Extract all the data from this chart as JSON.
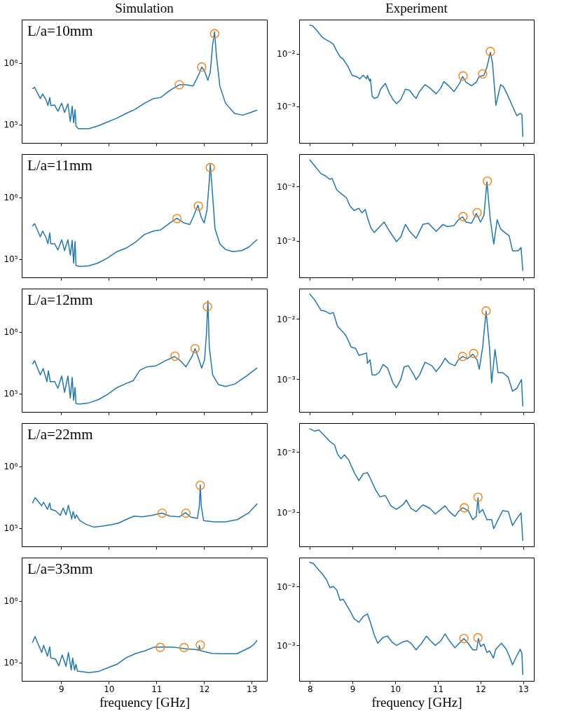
{
  "chart_data": [
    {
      "type": "line",
      "title": "Simulation",
      "annotations": [
        "L/a=10mm"
      ],
      "log": true,
      "xlim": [
        8.17,
        13.32
      ],
      "xticks": [
        9,
        10,
        11,
        12,
        13
      ],
      "ylim": [
        50000,
        5000000
      ],
      "yticks": [
        {
          "value": 100000,
          "label": "10⁵"
        },
        {
          "value": 1000000,
          "label": "10⁶"
        }
      ],
      "tick_labels": "y",
      "series": [
        {
          "color": "#1f77b4",
          "x": [
            8.4,
            8.44,
            8.56,
            8.61,
            8.68,
            8.72,
            8.76,
            8.78,
            8.86,
            8.93,
            9.01,
            9.07,
            9.14,
            9.19,
            9.23,
            9.26,
            9.29,
            9.31,
            9.36,
            9.58,
            9.78,
            9.97,
            10.17,
            10.36,
            10.55,
            10.75,
            10.94,
            11.09,
            11.28,
            11.48,
            11.62,
            11.77,
            11.89,
            11.95,
            12.01,
            12.08,
            12.13,
            12.18,
            12.22,
            12.26,
            12.33,
            12.45,
            12.64,
            12.81,
            12.98,
            13.11
          ],
          "values": [
            380000,
            400000,
            262000,
            311000,
            251000,
            202000,
            273000,
            202000,
            206000,
            163000,
            220000,
            156000,
            215000,
            111000,
            197000,
            106000,
            173000,
            93000,
            85000,
            85000,
            95000,
            109000,
            126000,
            150000,
            175000,
            220000,
            262000,
            273000,
            354000,
            438000,
            438000,
            420000,
            645000,
            850000,
            730000,
            520000,
            700000,
            1970000,
            3160000,
            1280000,
            420000,
            220000,
            150000,
            141000,
            156000,
            170000
          ]
        },
        {
          "type": "scatter",
          "marker": "circle",
          "color": "#ff7f0e",
          "x": [
            11.48,
            11.95,
            12.22
          ],
          "values": [
            438000,
            850000,
            2950000
          ]
        }
      ]
    },
    {
      "type": "line",
      "title": "Experiment",
      "log": true,
      "xlim": [
        7.75,
        13.25
      ],
      "xticks": [
        8,
        9,
        10,
        11,
        12,
        13
      ],
      "ylim": [
        0.0002,
        0.045
      ],
      "yticks": [
        {
          "value": 0.001,
          "label": "10⁻³"
        },
        {
          "value": 0.01,
          "label": "10⁻²"
        }
      ],
      "tick_labels": "y",
      "series": [
        {
          "color": "#1f77b4",
          "x": [
            8.0,
            8.06,
            8.16,
            8.29,
            8.37,
            8.47,
            8.55,
            8.63,
            8.71,
            8.78,
            8.89,
            8.99,
            9.09,
            9.17,
            9.25,
            9.33,
            9.35,
            9.4,
            9.42,
            9.46,
            9.51,
            9.59,
            9.66,
            9.77,
            9.87,
            9.95,
            10.03,
            10.13,
            10.24,
            10.34,
            10.44,
            10.49,
            10.57,
            10.7,
            10.81,
            10.96,
            11.07,
            11.14,
            11.25,
            11.38,
            11.51,
            11.58,
            11.66,
            11.79,
            11.9,
            11.97,
            12.08,
            12.15,
            12.23,
            12.28,
            12.36,
            12.47,
            12.54,
            12.62,
            12.75,
            12.85,
            12.93,
            12.97,
            12.99
          ],
          "values": [
            0.0352,
            0.0345,
            0.0281,
            0.0208,
            0.0188,
            0.017,
            0.0153,
            0.0113,
            0.00877,
            0.00792,
            0.00584,
            0.00389,
            0.0037,
            0.00334,
            0.00389,
            0.00334,
            0.00389,
            0.00302,
            0.00334,
            0.00156,
            0.00141,
            0.00149,
            0.00212,
            0.00273,
            0.00173,
            0.00134,
            0.00112,
            0.00134,
            0.00212,
            0.00201,
            0.00156,
            0.00141,
            0.00191,
            0.00259,
            0.00223,
            0.00173,
            0.00223,
            0.00296,
            0.00247,
            0.00191,
            0.00273,
            0.0037,
            0.00287,
            0.00247,
            0.00287,
            0.0037,
            0.00389,
            0.00555,
            0.0107,
            0.0068,
            0.00104,
            0.00259,
            0.00234,
            0.00173,
            0.001,
            0.00066,
            0.00073,
            0.00069,
            0.000265
          ]
        },
        {
          "type": "scatter",
          "marker": "circle",
          "color": "#ff7f0e",
          "x": [
            11.59,
            12.05,
            12.23
          ],
          "values": [
            0.00378,
            0.00414,
            0.0111
          ]
        }
      ]
    },
    {
      "type": "line",
      "annotations": [
        "L/a=11mm"
      ],
      "log": true,
      "xlim": [
        8.17,
        13.32
      ],
      "xticks": [
        9,
        10,
        11,
        12,
        13
      ],
      "ylim": [
        50000,
        5000000
      ],
      "yticks": [
        {
          "value": 100000,
          "label": "10⁵"
        },
        {
          "value": 1000000,
          "label": "10⁶"
        }
      ],
      "tick_labels": "y",
      "series": [
        {
          "color": "#1f77b4",
          "x": [
            8.4,
            8.44,
            8.56,
            8.61,
            8.68,
            8.72,
            8.76,
            8.78,
            8.86,
            8.93,
            9.01,
            9.07,
            9.14,
            9.19,
            9.23,
            9.26,
            9.29,
            9.31,
            9.39,
            9.58,
            9.78,
            9.97,
            10.17,
            10.36,
            10.55,
            10.75,
            10.94,
            11.09,
            11.28,
            11.43,
            11.58,
            11.7,
            11.79,
            11.87,
            11.94,
            12.0,
            12.06,
            12.11,
            12.13,
            12.17,
            12.23,
            12.33,
            12.45,
            12.6,
            12.79,
            12.94,
            13.11
          ],
          "values": [
            342000,
            372000,
            228000,
            283000,
            222000,
            176000,
            264000,
            176000,
            176000,
            140000,
            204000,
            136000,
            204000,
            115000,
            200000,
            85000,
            192000,
            78000,
            75000,
            77000,
            86000,
            103000,
            131000,
            149000,
            184000,
            249000,
            283000,
            295000,
            382000,
            454000,
            382000,
            360000,
            516000,
            740000,
            473000,
            382000,
            613000,
            1870000,
            3420000,
            1330000,
            308000,
            176000,
            142000,
            131000,
            136000,
            155000,
            204000
          ]
        },
        {
          "type": "scatter",
          "marker": "circle",
          "color": "#ff7f0e",
          "x": [
            11.43,
            11.88,
            12.13
          ],
          "values": [
            450000,
            720000,
            3030000
          ]
        }
      ]
    },
    {
      "type": "line",
      "log": true,
      "xlim": [
        7.75,
        13.25
      ],
      "xticks": [
        8,
        9,
        10,
        11,
        12,
        13
      ],
      "ylim": [
        0.000215,
        0.039
      ],
      "yticks": [
        {
          "value": 0.001,
          "label": "10⁻³"
        },
        {
          "value": 0.01,
          "label": "10⁻²"
        }
      ],
      "tick_labels": "y",
      "series": [
        {
          "color": "#1f77b4",
          "x": [
            8.0,
            8.11,
            8.26,
            8.37,
            8.47,
            8.52,
            8.63,
            8.76,
            8.86,
            8.94,
            9.04,
            9.15,
            9.22,
            9.3,
            9.35,
            9.43,
            9.51,
            9.64,
            9.74,
            9.87,
            10.03,
            10.13,
            10.24,
            10.34,
            10.49,
            10.65,
            10.78,
            10.96,
            11.12,
            11.22,
            11.38,
            11.48,
            11.58,
            11.66,
            11.79,
            11.9,
            12.0,
            12.08,
            12.15,
            12.23,
            12.31,
            12.39,
            12.47,
            12.57,
            12.67,
            12.75,
            12.88,
            12.95,
            12.99
          ],
          "values": [
            0.0305,
            0.024,
            0.0171,
            0.0155,
            0.0134,
            0.0141,
            0.00864,
            0.00711,
            0.00615,
            0.00438,
            0.0036,
            0.00397,
            0.00327,
            0.00378,
            0.00269,
            0.00174,
            0.00143,
            0.00183,
            0.00222,
            0.0015,
            0.00097,
            0.00118,
            0.00201,
            0.0015,
            0.00112,
            0.00201,
            0.00211,
            0.0015,
            0.00201,
            0.00183,
            0.00192,
            0.00244,
            0.00275,
            0.00222,
            0.00211,
            0.00318,
            0.00222,
            0.00297,
            0.0121,
            0.00244,
            0.00088,
            0.00244,
            0.00166,
            0.00143,
            0.00124,
            0.00066,
            0.00066,
            0.00076,
            0.000288
          ]
        },
        {
          "type": "scatter",
          "marker": "circle",
          "color": "#ff7f0e",
          "x": [
            11.59,
            11.92,
            12.16
          ],
          "values": [
            0.0028,
            0.0033,
            0.0125
          ]
        }
      ]
    },
    {
      "type": "line",
      "annotations": [
        "L/a=12mm"
      ],
      "log": true,
      "xlim": [
        8.17,
        13.32
      ],
      "xticks": [
        9,
        10,
        11,
        12,
        13
      ],
      "ylim": [
        50000,
        5000000
      ],
      "yticks": [
        {
          "value": 100000,
          "label": "10⁵"
        },
        {
          "value": 1000000,
          "label": "10⁶"
        }
      ],
      "tick_labels": "y",
      "series": [
        {
          "color": "#1f77b4",
          "x": [
            8.4,
            8.44,
            8.56,
            8.62,
            8.7,
            8.73,
            8.77,
            8.86,
            8.93,
            9.01,
            9.07,
            9.14,
            9.19,
            9.23,
            9.26,
            9.29,
            9.31,
            9.39,
            9.58,
            9.78,
            9.97,
            10.17,
            10.36,
            10.51,
            10.65,
            10.8,
            10.99,
            11.19,
            11.38,
            11.5,
            11.62,
            11.75,
            11.81,
            11.87,
            11.95,
            12.01,
            12.05,
            12.08,
            12.11,
            12.18,
            12.3,
            12.45,
            12.64,
            12.89,
            13.11
          ],
          "values": [
            300000,
            339000,
            199000,
            253000,
            154000,
            232000,
            154000,
            156000,
            121000,
            191000,
            104000,
            191000,
            84000,
            182000,
            77000,
            124000,
            68000,
            67000,
            70000,
            79000,
            96000,
            124000,
            144000,
            160000,
            236000,
            269000,
            280000,
            339000,
            395000,
            339000,
            269000,
            402000,
            530000,
            395000,
            257000,
            348000,
            930000,
            3160000,
            557000,
            199000,
            139000,
            129000,
            141000,
            191000,
            257000
          ]
        },
        {
          "type": "scatter",
          "marker": "circle",
          "color": "#ff7f0e",
          "x": [
            11.39,
            11.81,
            12.07
          ],
          "values": [
            400000,
            530000,
            2550000
          ]
        }
      ]
    },
    {
      "type": "line",
      "log": true,
      "xlim": [
        7.75,
        13.25
      ],
      "xticks": [
        8,
        9,
        10,
        11,
        12,
        13
      ],
      "ylim": [
        0.000285,
        0.032
      ],
      "yticks": [
        {
          "value": 0.001,
          "label": "10⁻³"
        },
        {
          "value": 0.01,
          "label": "10⁻²"
        }
      ],
      "tick_labels": "y",
      "series": [
        {
          "color": "#1f77b4",
          "x": [
            8.0,
            8.11,
            8.26,
            8.37,
            8.47,
            8.55,
            8.65,
            8.78,
            8.86,
            8.97,
            9.07,
            9.15,
            9.25,
            9.33,
            9.35,
            9.41,
            9.46,
            9.54,
            9.62,
            9.72,
            9.82,
            9.95,
            10.03,
            10.13,
            10.21,
            10.31,
            10.44,
            10.49,
            10.57,
            10.7,
            10.86,
            10.96,
            11.07,
            11.17,
            11.27,
            11.4,
            11.48,
            11.58,
            11.69,
            11.82,
            11.92,
            11.97,
            12.05,
            12.13,
            12.21,
            12.26,
            12.34,
            12.41,
            12.52,
            12.65,
            12.75,
            12.85,
            12.96,
            12.99
          ],
          "values": [
            0.026,
            0.0209,
            0.014,
            0.0134,
            0.0122,
            0.0128,
            0.00753,
            0.00604,
            0.00506,
            0.0034,
            0.00325,
            0.00249,
            0.0026,
            0.00272,
            0.00183,
            0.00209,
            0.00117,
            0.00117,
            0.00128,
            0.00175,
            0.00153,
            0.00086,
            0.00072,
            0.00098,
            0.0016,
            0.00167,
            0.00117,
            0.00098,
            0.00117,
            0.00191,
            0.00167,
            0.00134,
            0.00167,
            0.00222,
            0.00183,
            0.00167,
            0.00209,
            0.00238,
            0.00218,
            0.0026,
            0.00209,
            0.00146,
            0.0034,
            0.0134,
            0.0034,
            0.00086,
            0.00311,
            0.00128,
            0.00128,
            0.00107,
            0.00063,
            0.0007,
            0.00098,
            0.000355
          ]
        },
        {
          "type": "scatter",
          "marker": "circle",
          "color": "#ff7f0e",
          "x": [
            11.58,
            11.84,
            12.13
          ],
          "values": [
            0.00238,
            0.00267,
            0.0136
          ]
        }
      ]
    },
    {
      "type": "line",
      "annotations": [
        "L/a=22mm"
      ],
      "log": true,
      "xlim": [
        8.17,
        13.32
      ],
      "xticks": [
        9,
        10,
        11,
        12,
        13
      ],
      "ylim": [
        50000,
        5000000
      ],
      "yticks": [
        {
          "value": 100000,
          "label": "10⁵"
        },
        {
          "value": 1000000,
          "label": "10⁶"
        }
      ],
      "tick_labels": "y",
      "series": [
        {
          "color": "#1f77b4",
          "x": [
            8.4,
            8.45,
            8.59,
            8.63,
            8.71,
            8.76,
            8.78,
            8.88,
            8.98,
            9.04,
            9.1,
            9.15,
            9.22,
            9.25,
            9.29,
            9.32,
            9.39,
            9.53,
            9.68,
            9.87,
            10.07,
            10.21,
            10.36,
            10.53,
            10.7,
            10.9,
            11.11,
            11.28,
            11.48,
            11.61,
            11.72,
            11.86,
            11.9,
            11.92,
            11.94,
            11.99,
            12.21,
            12.45,
            12.7,
            12.94,
            13.11
          ],
          "values": [
            255000,
            308000,
            228000,
            260000,
            200000,
            253000,
            200000,
            189000,
            159000,
            210000,
            162000,
            232000,
            139000,
            184000,
            142000,
            162000,
            131000,
            113000,
            103000,
            107000,
            113000,
            120000,
            136000,
            155000,
            151000,
            159000,
            173000,
            155000,
            151000,
            176000,
            149000,
            142000,
            228000,
            494000,
            228000,
            131000,
            125000,
            125000,
            136000,
            176000,
            244000
          ]
        },
        {
          "type": "scatter",
          "marker": "circle",
          "color": "#ff7f0e",
          "x": [
            11.12,
            11.62,
            11.92
          ],
          "values": [
            173000,
            173000,
            490000
          ]
        }
      ]
    },
    {
      "type": "line",
      "log": true,
      "xlim": [
        7.75,
        13.25
      ],
      "xticks": [
        8,
        9,
        10,
        11,
        12,
        13
      ],
      "ylim": [
        0.00027,
        0.03
      ],
      "yticks": [
        {
          "value": 0.001,
          "label": "10⁻³"
        },
        {
          "value": 0.01,
          "label": "10⁻²"
        }
      ],
      "tick_labels": "y",
      "series": [
        {
          "color": "#1f77b4",
          "x": [
            8.0,
            8.11,
            8.21,
            8.32,
            8.47,
            8.58,
            8.65,
            8.73,
            8.81,
            8.91,
            9.04,
            9.15,
            9.25,
            9.35,
            9.43,
            9.54,
            9.64,
            9.77,
            9.9,
            10.03,
            10.18,
            10.26,
            10.37,
            10.49,
            10.65,
            10.81,
            10.94,
            11.07,
            11.17,
            11.27,
            11.4,
            11.48,
            11.58,
            11.71,
            11.82,
            11.9,
            11.94,
            11.97,
            12.05,
            12.15,
            12.26,
            12.31,
            12.41,
            12.52,
            12.65,
            12.75,
            12.85,
            12.95,
            12.99
          ],
          "values": [
            0.0241,
            0.0221,
            0.0231,
            0.0193,
            0.0149,
            0.013,
            0.00916,
            0.00768,
            0.00892,
            0.00735,
            0.00453,
            0.00333,
            0.00434,
            0.00453,
            0.00348,
            0.00235,
            0.0018,
            0.00188,
            0.00127,
            0.00111,
            0.00132,
            0.00158,
            0.00116,
            0.00102,
            0.00132,
            0.00116,
            0.00093,
            0.00111,
            0.00127,
            0.00102,
            0.00085,
            0.00102,
            0.00118,
            0.00106,
            0.00075,
            0.00085,
            0.00173,
            0.00097,
            0.00111,
            0.00075,
            0.00075,
            0.00053,
            0.00075,
            0.00106,
            0.00102,
            0.0006,
            0.00078,
            0.00097,
            0.00034
          ]
        },
        {
          "type": "scatter",
          "marker": "circle",
          "color": "#ff7f0e",
          "x": [
            11.62,
            11.94
          ],
          "values": [
            0.00118,
            0.00177
          ]
        }
      ]
    },
    {
      "type": "line",
      "annotations": [
        "L/a=33mm"
      ],
      "xlabel": "frequency [GHz]",
      "log": true,
      "xlim": [
        8.17,
        13.32
      ],
      "xticks": [
        9,
        10,
        11,
        12,
        13
      ],
      "ylim": [
        50000,
        5000000
      ],
      "yticks": [
        {
          "value": 100000,
          "label": "10⁵"
        },
        {
          "value": 1000000,
          "label": "10⁶"
        }
      ],
      "series": [
        {
          "color": "#1f77b4",
          "x": [
            8.4,
            8.45,
            8.59,
            8.63,
            8.71,
            8.76,
            8.78,
            8.88,
            8.95,
            9.02,
            9.1,
            9.15,
            9.21,
            9.24,
            9.28,
            9.31,
            9.34,
            9.58,
            9.78,
            9.97,
            10.17,
            10.36,
            10.55,
            10.75,
            10.94,
            11.14,
            11.38,
            11.62,
            11.82,
            11.89,
            11.9,
            11.92,
            12.16,
            12.4,
            12.69,
            12.84,
            12.98,
            13.04,
            13.11
          ],
          "values": [
            212000,
            262000,
            144000,
            189000,
            126000,
            178000,
            118000,
            113000,
            88000,
            132000,
            86000,
            144000,
            75000,
            118000,
            75000,
            93000,
            72000,
            68000,
            71000,
            81000,
            93000,
            118000,
            138000,
            153000,
            175000,
            178000,
            175000,
            166000,
            161000,
            157000,
            186000,
            155000,
            140000,
            138000,
            138000,
            157000,
            178000,
            194000,
            225000
          ]
        },
        {
          "type": "scatter",
          "marker": "circle",
          "color": "#ff7f0e",
          "x": [
            11.08,
            11.58,
            11.92
          ],
          "values": [
            175000,
            174000,
            191000
          ]
        }
      ]
    },
    {
      "type": "line",
      "xlabel": "frequency [GHz]",
      "log": true,
      "xlim": [
        7.75,
        13.25
      ],
      "xticks": [
        8,
        9,
        10,
        11,
        12,
        13
      ],
      "ylim": [
        0.00025,
        0.031
      ],
      "yticks": [
        {
          "value": 0.001,
          "label": "10⁻³"
        },
        {
          "value": 0.01,
          "label": "10⁻²"
        }
      ],
      "series": [
        {
          "color": "#1f77b4",
          "x": [
            8.0,
            8.08,
            8.19,
            8.29,
            8.39,
            8.47,
            8.55,
            8.63,
            8.71,
            8.78,
            8.86,
            8.94,
            9.04,
            9.15,
            9.25,
            9.35,
            9.41,
            9.51,
            9.59,
            9.72,
            9.82,
            9.92,
            10.03,
            10.18,
            10.29,
            10.39,
            10.49,
            10.62,
            10.73,
            10.83,
            10.94,
            11.07,
            11.17,
            11.27,
            11.4,
            11.48,
            11.61,
            11.71,
            11.82,
            11.91,
            11.95,
            12.0,
            12.08,
            12.15,
            12.21,
            12.3,
            12.36,
            12.49,
            12.6,
            12.67,
            12.75,
            12.85,
            12.93,
            12.97,
            12.99
          ],
          "values": [
            0.0258,
            0.0247,
            0.0197,
            0.0164,
            0.0131,
            0.00955,
            0.01,
            0.00873,
            0.00582,
            0.00608,
            0.00485,
            0.00387,
            0.00283,
            0.00247,
            0.00309,
            0.00344,
            0.00258,
            0.0015,
            0.00109,
            0.00137,
            0.00144,
            0.00115,
            0.001,
            0.00115,
            0.0012,
            0.00105,
            0.00084,
            0.00109,
            0.00144,
            0.0012,
            0.001,
            0.0012,
            0.00157,
            0.0012,
            0.00091,
            0.00105,
            0.00131,
            0.00109,
            0.00084,
            0.00084,
            0.00131,
            0.00096,
            0.00105,
            0.00076,
            0.00081,
            0.00061,
            0.00087,
            0.00109,
            0.00087,
            0.00067,
            0.00047,
            0.00067,
            0.00086,
            0.00073,
            0.00032
          ]
        },
        {
          "type": "scatter",
          "marker": "circle",
          "color": "#ff7f0e",
          "x": [
            11.61,
            11.94
          ],
          "values": [
            0.00131,
            0.00135
          ]
        }
      ]
    }
  ]
}
